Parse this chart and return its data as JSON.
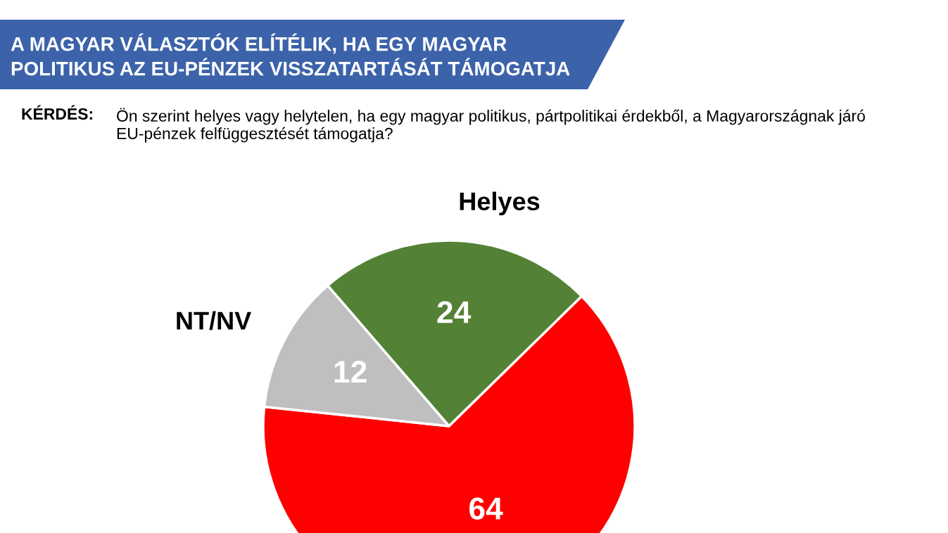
{
  "chart_data": {
    "type": "pie",
    "title": "A MAGYAR VÁLASZTÓK ELÍTÉLIK, HA EGY MAGYAR\nPOLITIKUS AZ EU-PÉNZEK VISSZATARTÁSÁT TÁMOGATJA",
    "subtitle": "Ön szerint helyes vagy helytelen, ha egy magyar politikus, pártpolitikai érdekből, a Magyarországnak járó\nEU-pénzek felfüggesztését támogatja?",
    "annotations": [
      "KÉRDÉS:"
    ],
    "categories": [
      "Helyes",
      null,
      "NT/NV"
    ],
    "values": [
      24,
      64,
      12
    ],
    "colors": [
      "#538135",
      "#ff0000",
      "#bfbfbf"
    ],
    "data_labels": true
  }
}
